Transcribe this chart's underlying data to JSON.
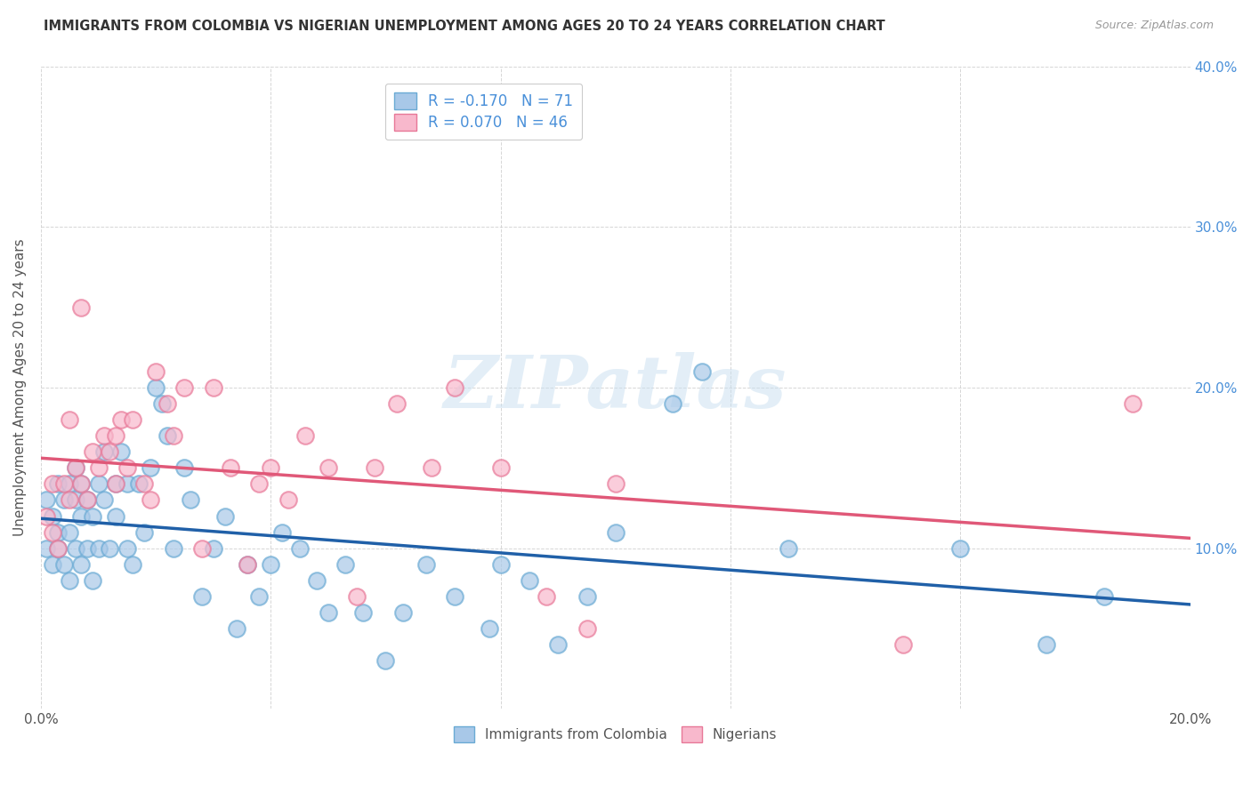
{
  "title": "IMMIGRANTS FROM COLOMBIA VS NIGERIAN UNEMPLOYMENT AMONG AGES 20 TO 24 YEARS CORRELATION CHART",
  "source": "Source: ZipAtlas.com",
  "ylabel": "Unemployment Among Ages 20 to 24 years",
  "xlim": [
    0.0,
    0.2
  ],
  "ylim": [
    0.0,
    0.4
  ],
  "xticks": [
    0.0,
    0.04,
    0.08,
    0.12,
    0.16,
    0.2
  ],
  "yticks": [
    0.0,
    0.1,
    0.2,
    0.3,
    0.4
  ],
  "xtick_labels": [
    "0.0%",
    "",
    "",
    "",
    "",
    "20.0%"
  ],
  "ytick_labels_right": [
    "",
    "10.0%",
    "20.0%",
    "30.0%",
    "40.0%"
  ],
  "colombia_R": -0.17,
  "colombia_N": 71,
  "nigeria_R": 0.07,
  "nigeria_N": 46,
  "colombia_color": "#a8c8e8",
  "colombia_edge_color": "#6aaad4",
  "colombia_line_color": "#2060a8",
  "nigeria_color": "#f8b8cc",
  "nigeria_edge_color": "#e87898",
  "nigeria_line_color": "#e05878",
  "watermark_color": "#c8dff0",
  "legend_text_color": "#4a90d9",
  "right_axis_color": "#4a90d9",
  "colombia_scatter_x": [
    0.001,
    0.001,
    0.002,
    0.002,
    0.003,
    0.003,
    0.003,
    0.004,
    0.004,
    0.005,
    0.005,
    0.005,
    0.006,
    0.006,
    0.006,
    0.007,
    0.007,
    0.007,
    0.008,
    0.008,
    0.009,
    0.009,
    0.01,
    0.01,
    0.011,
    0.011,
    0.012,
    0.013,
    0.013,
    0.014,
    0.015,
    0.015,
    0.016,
    0.017,
    0.018,
    0.019,
    0.02,
    0.021,
    0.022,
    0.023,
    0.025,
    0.026,
    0.028,
    0.03,
    0.032,
    0.034,
    0.036,
    0.038,
    0.04,
    0.042,
    0.045,
    0.048,
    0.05,
    0.053,
    0.056,
    0.06,
    0.063,
    0.067,
    0.072,
    0.078,
    0.08,
    0.085,
    0.09,
    0.095,
    0.1,
    0.11,
    0.115,
    0.13,
    0.16,
    0.175,
    0.185
  ],
  "colombia_scatter_y": [
    0.13,
    0.1,
    0.12,
    0.09,
    0.11,
    0.14,
    0.1,
    0.09,
    0.13,
    0.08,
    0.11,
    0.14,
    0.1,
    0.13,
    0.15,
    0.09,
    0.12,
    0.14,
    0.1,
    0.13,
    0.08,
    0.12,
    0.14,
    0.1,
    0.16,
    0.13,
    0.1,
    0.14,
    0.12,
    0.16,
    0.1,
    0.14,
    0.09,
    0.14,
    0.11,
    0.15,
    0.2,
    0.19,
    0.17,
    0.1,
    0.15,
    0.13,
    0.07,
    0.1,
    0.12,
    0.05,
    0.09,
    0.07,
    0.09,
    0.11,
    0.1,
    0.08,
    0.06,
    0.09,
    0.06,
    0.03,
    0.06,
    0.09,
    0.07,
    0.05,
    0.09,
    0.08,
    0.04,
    0.07,
    0.11,
    0.19,
    0.21,
    0.1,
    0.1,
    0.04,
    0.07
  ],
  "nigeria_scatter_x": [
    0.001,
    0.002,
    0.002,
    0.003,
    0.004,
    0.005,
    0.005,
    0.006,
    0.007,
    0.007,
    0.008,
    0.009,
    0.01,
    0.011,
    0.012,
    0.013,
    0.013,
    0.014,
    0.015,
    0.016,
    0.018,
    0.019,
    0.02,
    0.022,
    0.023,
    0.025,
    0.028,
    0.03,
    0.033,
    0.036,
    0.038,
    0.04,
    0.043,
    0.046,
    0.05,
    0.055,
    0.058,
    0.062,
    0.068,
    0.072,
    0.08,
    0.088,
    0.095,
    0.1,
    0.15,
    0.19
  ],
  "nigeria_scatter_y": [
    0.12,
    0.11,
    0.14,
    0.1,
    0.14,
    0.13,
    0.18,
    0.15,
    0.14,
    0.25,
    0.13,
    0.16,
    0.15,
    0.17,
    0.16,
    0.17,
    0.14,
    0.18,
    0.15,
    0.18,
    0.14,
    0.13,
    0.21,
    0.19,
    0.17,
    0.2,
    0.1,
    0.2,
    0.15,
    0.09,
    0.14,
    0.15,
    0.13,
    0.17,
    0.15,
    0.07,
    0.15,
    0.19,
    0.15,
    0.2,
    0.15,
    0.07,
    0.05,
    0.14,
    0.04,
    0.19
  ]
}
